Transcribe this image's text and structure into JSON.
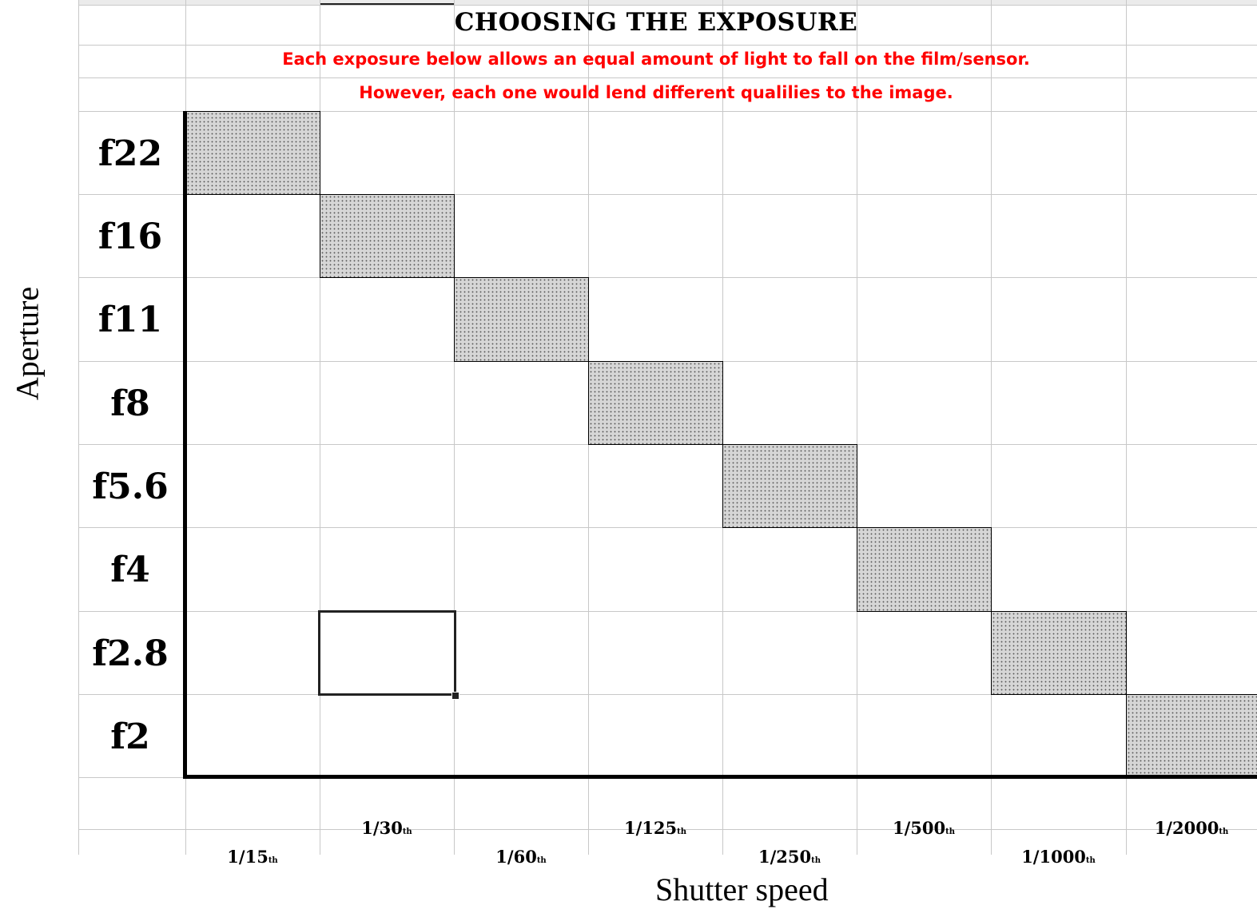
{
  "header": {
    "title": "CHOOSING THE EXPOSURE",
    "subtitle_line1": "Each exposure below allows an equal amount of light to fall on the film/sensor.",
    "subtitle_line2": "However, each one would lend different qualilies to the image."
  },
  "axes": {
    "y_title": "Aperture",
    "x_title": "Shutter speed"
  },
  "apertures": [
    "f22",
    "f16",
    "f11",
    "f8",
    "f5.6",
    "f4",
    "f2.8",
    "f2"
  ],
  "shutter_speeds": [
    {
      "value": "1/15",
      "suffix": "th"
    },
    {
      "value": "1/30",
      "suffix": "th"
    },
    {
      "value": "1/60",
      "suffix": "th"
    },
    {
      "value": "1/125",
      "suffix": "th"
    },
    {
      "value": "1/250",
      "suffix": "th"
    },
    {
      "value": "1/500",
      "suffix": "th"
    },
    {
      "value": "1/1000",
      "suffix": "th"
    },
    {
      "value": "1/2000",
      "suffix": "th"
    }
  ],
  "equivalent_exposures": [
    {
      "aperture": "f22",
      "shutter": "1/15"
    },
    {
      "aperture": "f16",
      "shutter": "1/30"
    },
    {
      "aperture": "f11",
      "shutter": "1/60"
    },
    {
      "aperture": "f8",
      "shutter": "1/125"
    },
    {
      "aperture": "f5.6",
      "shutter": "1/250"
    },
    {
      "aperture": "f4",
      "shutter": "1/500"
    },
    {
      "aperture": "f2.8",
      "shutter": "1/1000"
    },
    {
      "aperture": "f2",
      "shutter": "1/2000"
    }
  ],
  "selected_cell": {
    "aperture": "f2.8",
    "shutter": "1/30"
  },
  "colors": {
    "subtitle": "#ff0000",
    "gridline": "#c8c8c8",
    "shaded_fill": "#d6d6d6"
  }
}
